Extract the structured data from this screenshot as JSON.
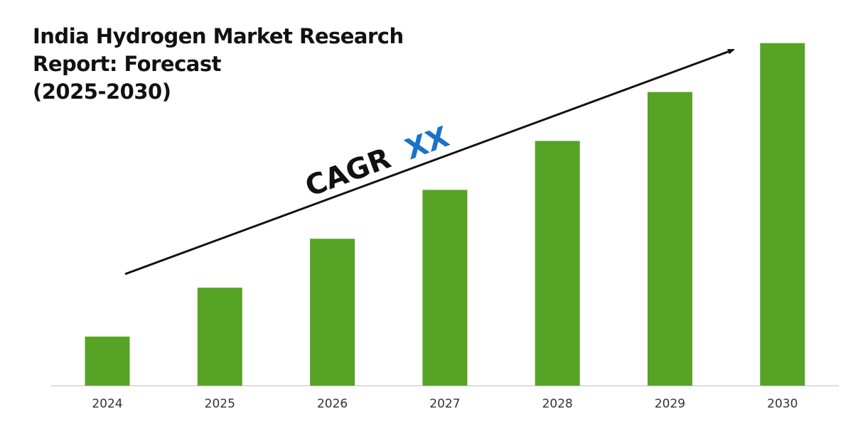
{
  "chart_data": {
    "type": "bar",
    "title_lines": [
      "India Hydrogen Market Research",
      "Report: Forecast",
      "(2025-2030)"
    ],
    "categories": [
      "2024",
      "2025",
      "2026",
      "2027",
      "2028",
      "2029",
      "2030"
    ],
    "values": [
      1,
      2,
      3,
      4,
      5,
      6,
      7
    ],
    "annotation": {
      "text": "CAGR",
      "value": "XX"
    },
    "grid": false,
    "legend": "none",
    "colors": {
      "bar": "#57a325",
      "axis": "#bfbfbf",
      "tick_label": "#333333",
      "annotation_text": "#111111",
      "annotation_value": "#1b73c9",
      "arrow": "#111111"
    }
  }
}
